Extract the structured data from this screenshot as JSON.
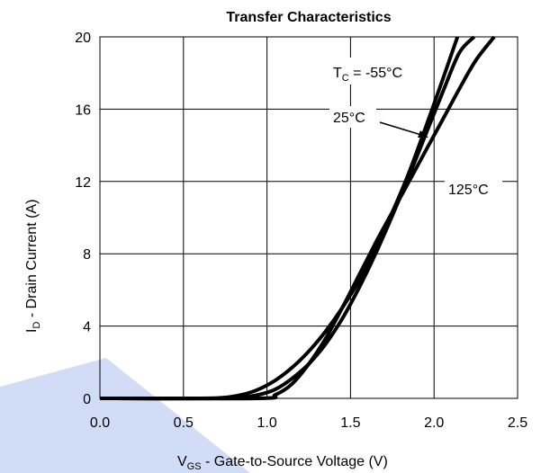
{
  "chart_data": {
    "type": "line",
    "title": "Transfer Characteristics",
    "ylabel": {
      "prefix": "I",
      "sub": "D",
      "suffix": " -  Drain Current (A)"
    },
    "xlabel": {
      "prefix": "V",
      "sub": "GS",
      "suffix": "  -  Gate-to-Source Voltage (V)"
    },
    "xlim": [
      0,
      2.5
    ],
    "ylim": [
      0,
      20
    ],
    "xticks": [
      "0.0",
      "0.5",
      "1.0",
      "1.5",
      "2.0",
      "2.5"
    ],
    "yticks": [
      "0",
      "4",
      "8",
      "12",
      "16",
      "20"
    ],
    "grid": true,
    "series": [
      {
        "name": "TC = -55°C",
        "x": [
          0.0,
          0.6,
          0.75,
          0.85,
          0.95,
          1.05,
          1.15,
          1.25,
          1.35,
          1.45,
          1.55,
          1.65,
          1.75,
          1.85,
          1.95,
          2.05,
          2.14
        ],
        "y": [
          0.0,
          0.0,
          0.05,
          0.2,
          0.5,
          1.0,
          1.7,
          2.6,
          3.7,
          5.0,
          6.5,
          8.3,
          10.3,
          12.5,
          15.0,
          17.6,
          20.0
        ]
      },
      {
        "name": "25°C",
        "x": [
          0.0,
          0.7,
          0.85,
          0.95,
          1.05,
          1.15,
          1.25,
          1.35,
          1.45,
          1.55,
          1.65,
          1.75,
          1.85,
          1.95,
          2.05,
          2.15,
          2.24
        ],
        "y": [
          0.0,
          0.0,
          0.05,
          0.2,
          0.5,
          1.1,
          1.9,
          3.0,
          4.4,
          6.1,
          8.0,
          10.1,
          12.3,
          14.6,
          16.9,
          19.1,
          20.0
        ]
      },
      {
        "name": "125°C",
        "x": [
          0.0,
          0.95,
          1.05,
          1.15,
          1.25,
          1.35,
          1.45,
          1.55,
          1.65,
          1.75,
          1.85,
          1.95,
          2.05,
          2.15,
          2.25,
          2.36
        ],
        "y": [
          0.0,
          0.0,
          0.2,
          0.8,
          1.9,
          3.3,
          5.0,
          6.8,
          8.6,
          10.3,
          12.0,
          13.7,
          15.4,
          17.1,
          18.7,
          20.0
        ]
      }
    ],
    "annotations": {
      "tc": {
        "prefix": "T",
        "sub": "C",
        "suffix": " = -55°C"
      },
      "t25": "25°C",
      "t125": "125°C"
    }
  },
  "style": {
    "line_color": "#000000",
    "watermark_color": "#c9d7f4"
  }
}
